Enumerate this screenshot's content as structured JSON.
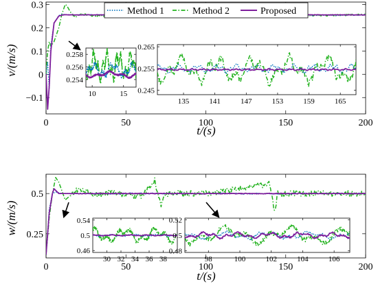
{
  "legend": [
    {
      "name": "Method 1",
      "color": "#0072BD",
      "style": "dotted"
    },
    {
      "name": "Method 2",
      "color": "#22B21E",
      "style": "dashdot"
    },
    {
      "name": "Proposed",
      "color": "#7E1E9C",
      "style": "solid"
    }
  ],
  "chart_data": [
    {
      "type": "line",
      "panel": "top",
      "ylabel": "v/(m/s)",
      "xlabel": "t/(s)",
      "xlim": [
        0,
        200
      ],
      "ylim": [
        -0.17,
        0.31
      ],
      "xticks": [
        0,
        50,
        100,
        150,
        200
      ],
      "yticks": [
        -0.1,
        0,
        0.1,
        0.2,
        0.3
      ],
      "grid": false,
      "legend_position": "top",
      "series": [
        {
          "name": "Method 1",
          "t": [
            0,
            1,
            2,
            3,
            5,
            8,
            10,
            12,
            14,
            20,
            40,
            100,
            101,
            150,
            200
          ],
          "v": [
            0,
            0.05,
            -0.06,
            0.12,
            0.22,
            0.252,
            0.258,
            0.256,
            0.2555,
            0.255,
            0.255,
            0.255,
            0.258,
            0.252,
            0.255
          ]
        },
        {
          "name": "Method 2",
          "t": [
            0,
            1,
            2,
            3,
            5,
            8,
            10,
            12,
            13,
            15,
            18,
            22,
            30,
            80,
            100,
            150,
            200
          ],
          "v": [
            0,
            0.1,
            0.14,
            0.12,
            0.14,
            0.2,
            0.26,
            0.3,
            0.295,
            0.27,
            0.245,
            0.26,
            0.25,
            0.256,
            0.26,
            0.25,
            0.256
          ]
        },
        {
          "name": "Proposed",
          "t": [
            0,
            1,
            2,
            3,
            5,
            8,
            10,
            12,
            14,
            20,
            40,
            200
          ],
          "v": [
            0,
            -0.15,
            -0.05,
            0.1,
            0.22,
            0.25,
            0.254,
            0.256,
            0.255,
            0.255,
            0.255,
            0.255
          ]
        }
      ],
      "insets": [
        {
          "xticks": [
            10,
            15
          ],
          "yticks": [
            0.254,
            0.256,
            0.258
          ],
          "xlim": [
            9,
            17
          ],
          "ylim": [
            0.2528,
            0.259
          ]
        },
        {
          "xticks": [
            135,
            141,
            147,
            153,
            159,
            165
          ],
          "yticks": [
            0.245,
            0.255,
            0.265
          ],
          "xlim": [
            130,
            168
          ],
          "ylim": [
            0.243,
            0.266
          ]
        }
      ]
    },
    {
      "type": "line",
      "panel": "bottom",
      "ylabel": "w/(m/s)",
      "xlabel": "t/(s)",
      "xlim": [
        0,
        200
      ],
      "ylim": [
        0.1,
        0.62
      ],
      "xticks": [
        0,
        50,
        100,
        150,
        200
      ],
      "yticks": [
        0.25,
        0.5
      ],
      "yticklabels": [
        "0.25",
        "0.5"
      ],
      "grid": false,
      "series": [
        {
          "name": "Method 1",
          "t": [
            0,
            2,
            4,
            6,
            10,
            200
          ],
          "w": [
            0.12,
            0.4,
            0.5,
            0.51,
            0.5,
            0.5
          ]
        },
        {
          "name": "Method 2",
          "t": [
            0,
            2,
            4,
            6,
            8,
            12,
            20,
            30,
            40,
            60,
            68,
            72,
            75,
            100,
            140,
            143,
            145,
            150,
            160,
            200
          ],
          "w": [
            0.12,
            0.35,
            0.5,
            0.6,
            0.57,
            0.46,
            0.53,
            0.49,
            0.51,
            0.48,
            0.58,
            0.42,
            0.5,
            0.5,
            0.56,
            0.38,
            0.5,
            0.5,
            0.5,
            0.5
          ]
        },
        {
          "name": "Proposed",
          "t": [
            0,
            2,
            4,
            5,
            8,
            12,
            200
          ],
          "w": [
            0.12,
            0.38,
            0.5,
            0.53,
            0.5,
            0.5,
            0.5
          ]
        }
      ],
      "insets": [
        {
          "xticks": [
            30,
            32,
            34,
            36,
            38
          ],
          "yticks": [
            0.46,
            0.5,
            0.54
          ],
          "xlim": [
            28,
            40
          ],
          "ylim": [
            0.455,
            0.545
          ]
        },
        {
          "xticks": [
            98,
            100,
            102,
            104,
            106
          ],
          "yticks": [
            0.48,
            0.5,
            0.52
          ],
          "xlim": [
            96.5,
            107
          ],
          "ylim": [
            0.478,
            0.522
          ]
        }
      ]
    }
  ]
}
